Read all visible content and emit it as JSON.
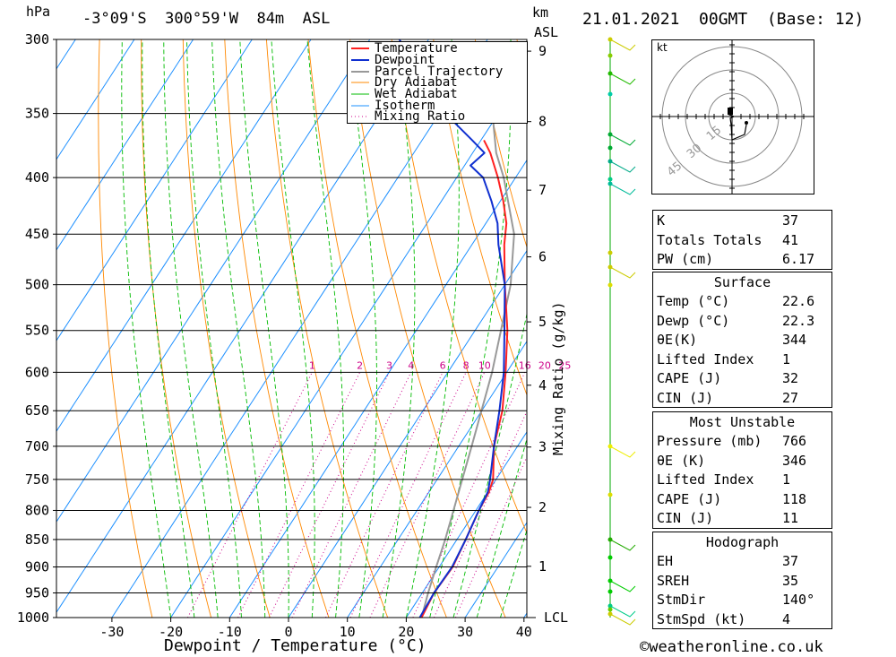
{
  "header": {
    "location": "-3°09'S  300°59'W  84m  ASL",
    "datetime": "21.01.2021  00GMT  (Base: 12)",
    "left_unit": "hPa",
    "right_unit_1": "km",
    "right_unit_2": "ASL"
  },
  "chart_data": {
    "type": "skew-t",
    "xlabel": "Dewpoint / Temperature (°C)",
    "mixing_ratio_label": "Mixing Ratio (g/kg)",
    "pressure_levels": [
      300,
      350,
      400,
      450,
      500,
      550,
      600,
      650,
      700,
      750,
      800,
      850,
      900,
      950,
      1000
    ],
    "temperature_ticks": [
      -30,
      -20,
      -10,
      0,
      10,
      20,
      30,
      40
    ],
    "km_ticks": [
      "1",
      "2",
      "3",
      "4",
      "5",
      "6",
      "7",
      "8",
      "9"
    ],
    "km_heights": [
      1,
      2,
      3,
      4,
      5,
      6,
      7,
      8,
      9
    ],
    "lcl_label": "LCL",
    "mixing_ratio_values": [
      "1",
      "2",
      "3",
      "4",
      "6",
      "8",
      "10",
      "16",
      "20",
      "25"
    ],
    "mixing_ratio_numbers": [
      1,
      2,
      3,
      4,
      6,
      8,
      10,
      16,
      20,
      25
    ],
    "legend": [
      "Temperature",
      "Dewpoint",
      "Parcel Trajectory",
      "Dry Adiabat",
      "Wet Adiabat",
      "Isotherm",
      "Mixing Ratio"
    ],
    "colors": {
      "temperature": "#ff2020",
      "dewpoint": "#1030d0",
      "parcel": "#999999",
      "dry_adiabat": "#ff8800",
      "wet_adiabat": "#00bb00",
      "isotherm": "#1e90ff",
      "mixing_ratio": "#cc0088"
    },
    "temperature_profile": {
      "pressure": [
        1000,
        950,
        900,
        850,
        800,
        770,
        750,
        700,
        650,
        600,
        550,
        500,
        460,
        440,
        420,
        400,
        380,
        370
      ],
      "value": [
        22.6,
        22.0,
        22.3,
        21.5,
        20.5,
        20.2,
        19.5,
        16.0,
        13.5,
        9.8,
        5.5,
        0.0,
        -4.5,
        -6.5,
        -9.5,
        -13.0,
        -17.0,
        -19.5
      ]
    },
    "dewpoint_profile": {
      "pressure": [
        1000,
        950,
        900,
        850,
        800,
        770,
        750,
        700,
        650,
        600,
        550,
        500,
        460,
        440,
        420,
        400,
        390,
        380,
        370,
        350,
        300
      ],
      "value": [
        22.3,
        22.0,
        22.2,
        21.5,
        20.5,
        20.0,
        19.0,
        16.0,
        13.0,
        9.5,
        5.0,
        0.0,
        -5.5,
        -8.0,
        -11.5,
        -15.5,
        -19.0,
        -18.0,
        -21.5,
        -29.0,
        -45.0
      ]
    },
    "parcel_profile": {
      "pressure": [
        1000,
        950,
        900,
        850,
        800,
        700,
        600,
        500,
        450,
        400,
        380,
        350,
        320,
        310
      ],
      "value": [
        22.6,
        21.0,
        19.5,
        18.0,
        16.2,
        12.2,
        7.5,
        1.0,
        -4.0,
        -12.0,
        -16.0,
        -21.0,
        -27.0,
        -29.5
      ]
    }
  },
  "hodograph": {
    "unit": "kt",
    "rings": [
      "15",
      "30",
      "45"
    ]
  },
  "indices": [
    {
      "label": "K",
      "value": "37"
    },
    {
      "label": "Totals Totals",
      "value": "41"
    },
    {
      "label": "PW (cm)",
      "value": "6.17"
    }
  ],
  "surface": {
    "title": "Surface",
    "rows": [
      {
        "label": "Temp (°C)",
        "value": "22.6"
      },
      {
        "label": "Dewp (°C)",
        "value": "22.3"
      },
      {
        "label": "θE(K)",
        "value": "344"
      },
      {
        "label": "Lifted Index",
        "value": "1"
      },
      {
        "label": "CAPE (J)",
        "value": "32"
      },
      {
        "label": "CIN (J)",
        "value": "27"
      }
    ]
  },
  "most_unstable": {
    "title": "Most Unstable",
    "rows": [
      {
        "label": "Pressure (mb)",
        "value": "766"
      },
      {
        "label": "θE (K)",
        "value": "346"
      },
      {
        "label": "Lifted Index",
        "value": "1"
      },
      {
        "label": "CAPE (J)",
        "value": "118"
      },
      {
        "label": "CIN (J)",
        "value": "11"
      }
    ]
  },
  "hodograph_table": {
    "title": "Hodograph",
    "rows": [
      {
        "label": "EH",
        "value": "37"
      },
      {
        "label": "SREH",
        "value": "35"
      },
      {
        "label": "StmDir",
        "value": "140°"
      },
      {
        "label": "StmSpd (kt)",
        "value": "4"
      }
    ]
  },
  "credit": "©weatheronline.co.uk"
}
